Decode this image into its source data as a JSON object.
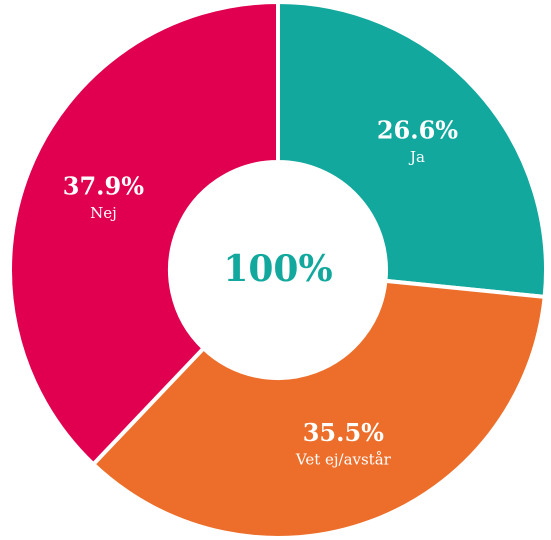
{
  "chart_data": {
    "type": "donut",
    "categories": [
      "Ja",
      "Vet ej/avstår",
      "Nej"
    ],
    "values": [
      26.6,
      35.5,
      37.9
    ],
    "value_labels": [
      "26.6%",
      "35.5%",
      "37.9%"
    ],
    "colors": [
      "#12a89d",
      "#ec6e2a",
      "#e0004f"
    ],
    "center_label": "100%"
  }
}
